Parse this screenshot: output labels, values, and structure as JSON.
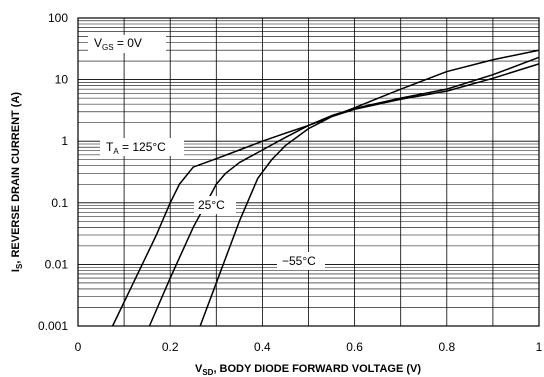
{
  "chart_data": {
    "type": "line",
    "x_scale": "linear",
    "y_scale": "log",
    "xlim": [
      0,
      1
    ],
    "ylim": [
      0.001,
      100
    ],
    "grid": true,
    "x_ticks": [
      0,
      0.2,
      0.4,
      0.6,
      0.8,
      1
    ],
    "x_tick_labels": [
      "0",
      "0.2",
      "0.4",
      "0.6",
      "0.8",
      "1"
    ],
    "y_ticks": [
      0.001,
      0.01,
      0.1,
      1,
      10,
      100
    ],
    "y_tick_labels": [
      "0.001",
      "0.01",
      "0.1",
      "1",
      "10",
      "100"
    ],
    "xlabel": {
      "main": "V",
      "sub": "SD",
      "rest": ", BODY DIODE FORWARD VOLTAGE (V)"
    },
    "ylabel": {
      "main": "I",
      "sub": "S",
      "rest": ", REVERSE DRAIN CURRENT (A)"
    },
    "annotations": [
      {
        "id": "vgs",
        "main": "V",
        "sub": "GS",
        "rest": " = 0V"
      },
      {
        "id": "ta",
        "main": "T",
        "sub": "A",
        "rest": " = 125°C"
      },
      {
        "id": "t25",
        "main": "25°C",
        "sub": "",
        "rest": ""
      },
      {
        "id": "tm55",
        "main": "−55°C",
        "sub": "",
        "rest": ""
      }
    ],
    "series": [
      {
        "x": [
          0.075,
          0.12,
          0.17,
          0.2,
          0.22,
          0.25,
          0.3,
          0.35,
          0.4,
          0.45,
          0.5,
          0.55,
          0.6,
          0.7,
          0.8,
          0.9,
          1.0
        ],
        "y": [
          0.001,
          0.005,
          0.03,
          0.1,
          0.2,
          0.38,
          0.52,
          0.72,
          1.0,
          1.35,
          1.8,
          2.5,
          3.5,
          7.0,
          13.5,
          21,
          30
        ]
      },
      {
        "x": [
          0.155,
          0.2,
          0.25,
          0.3,
          0.32,
          0.35,
          0.4,
          0.45,
          0.5,
          0.55,
          0.6,
          0.7,
          0.8,
          0.9,
          1.0
        ],
        "y": [
          0.001,
          0.006,
          0.04,
          0.2,
          0.3,
          0.45,
          0.72,
          1.15,
          1.8,
          2.6,
          3.4,
          5.0,
          7.0,
          12.0,
          23
        ]
      },
      {
        "x": [
          0.265,
          0.3,
          0.35,
          0.39,
          0.42,
          0.45,
          0.5,
          0.55,
          0.6,
          0.7,
          0.8,
          0.9,
          1.0
        ],
        "y": [
          0.001,
          0.005,
          0.05,
          0.25,
          0.5,
          0.85,
          1.6,
          2.5,
          3.3,
          4.8,
          6.5,
          10.5,
          18
        ]
      }
    ]
  }
}
